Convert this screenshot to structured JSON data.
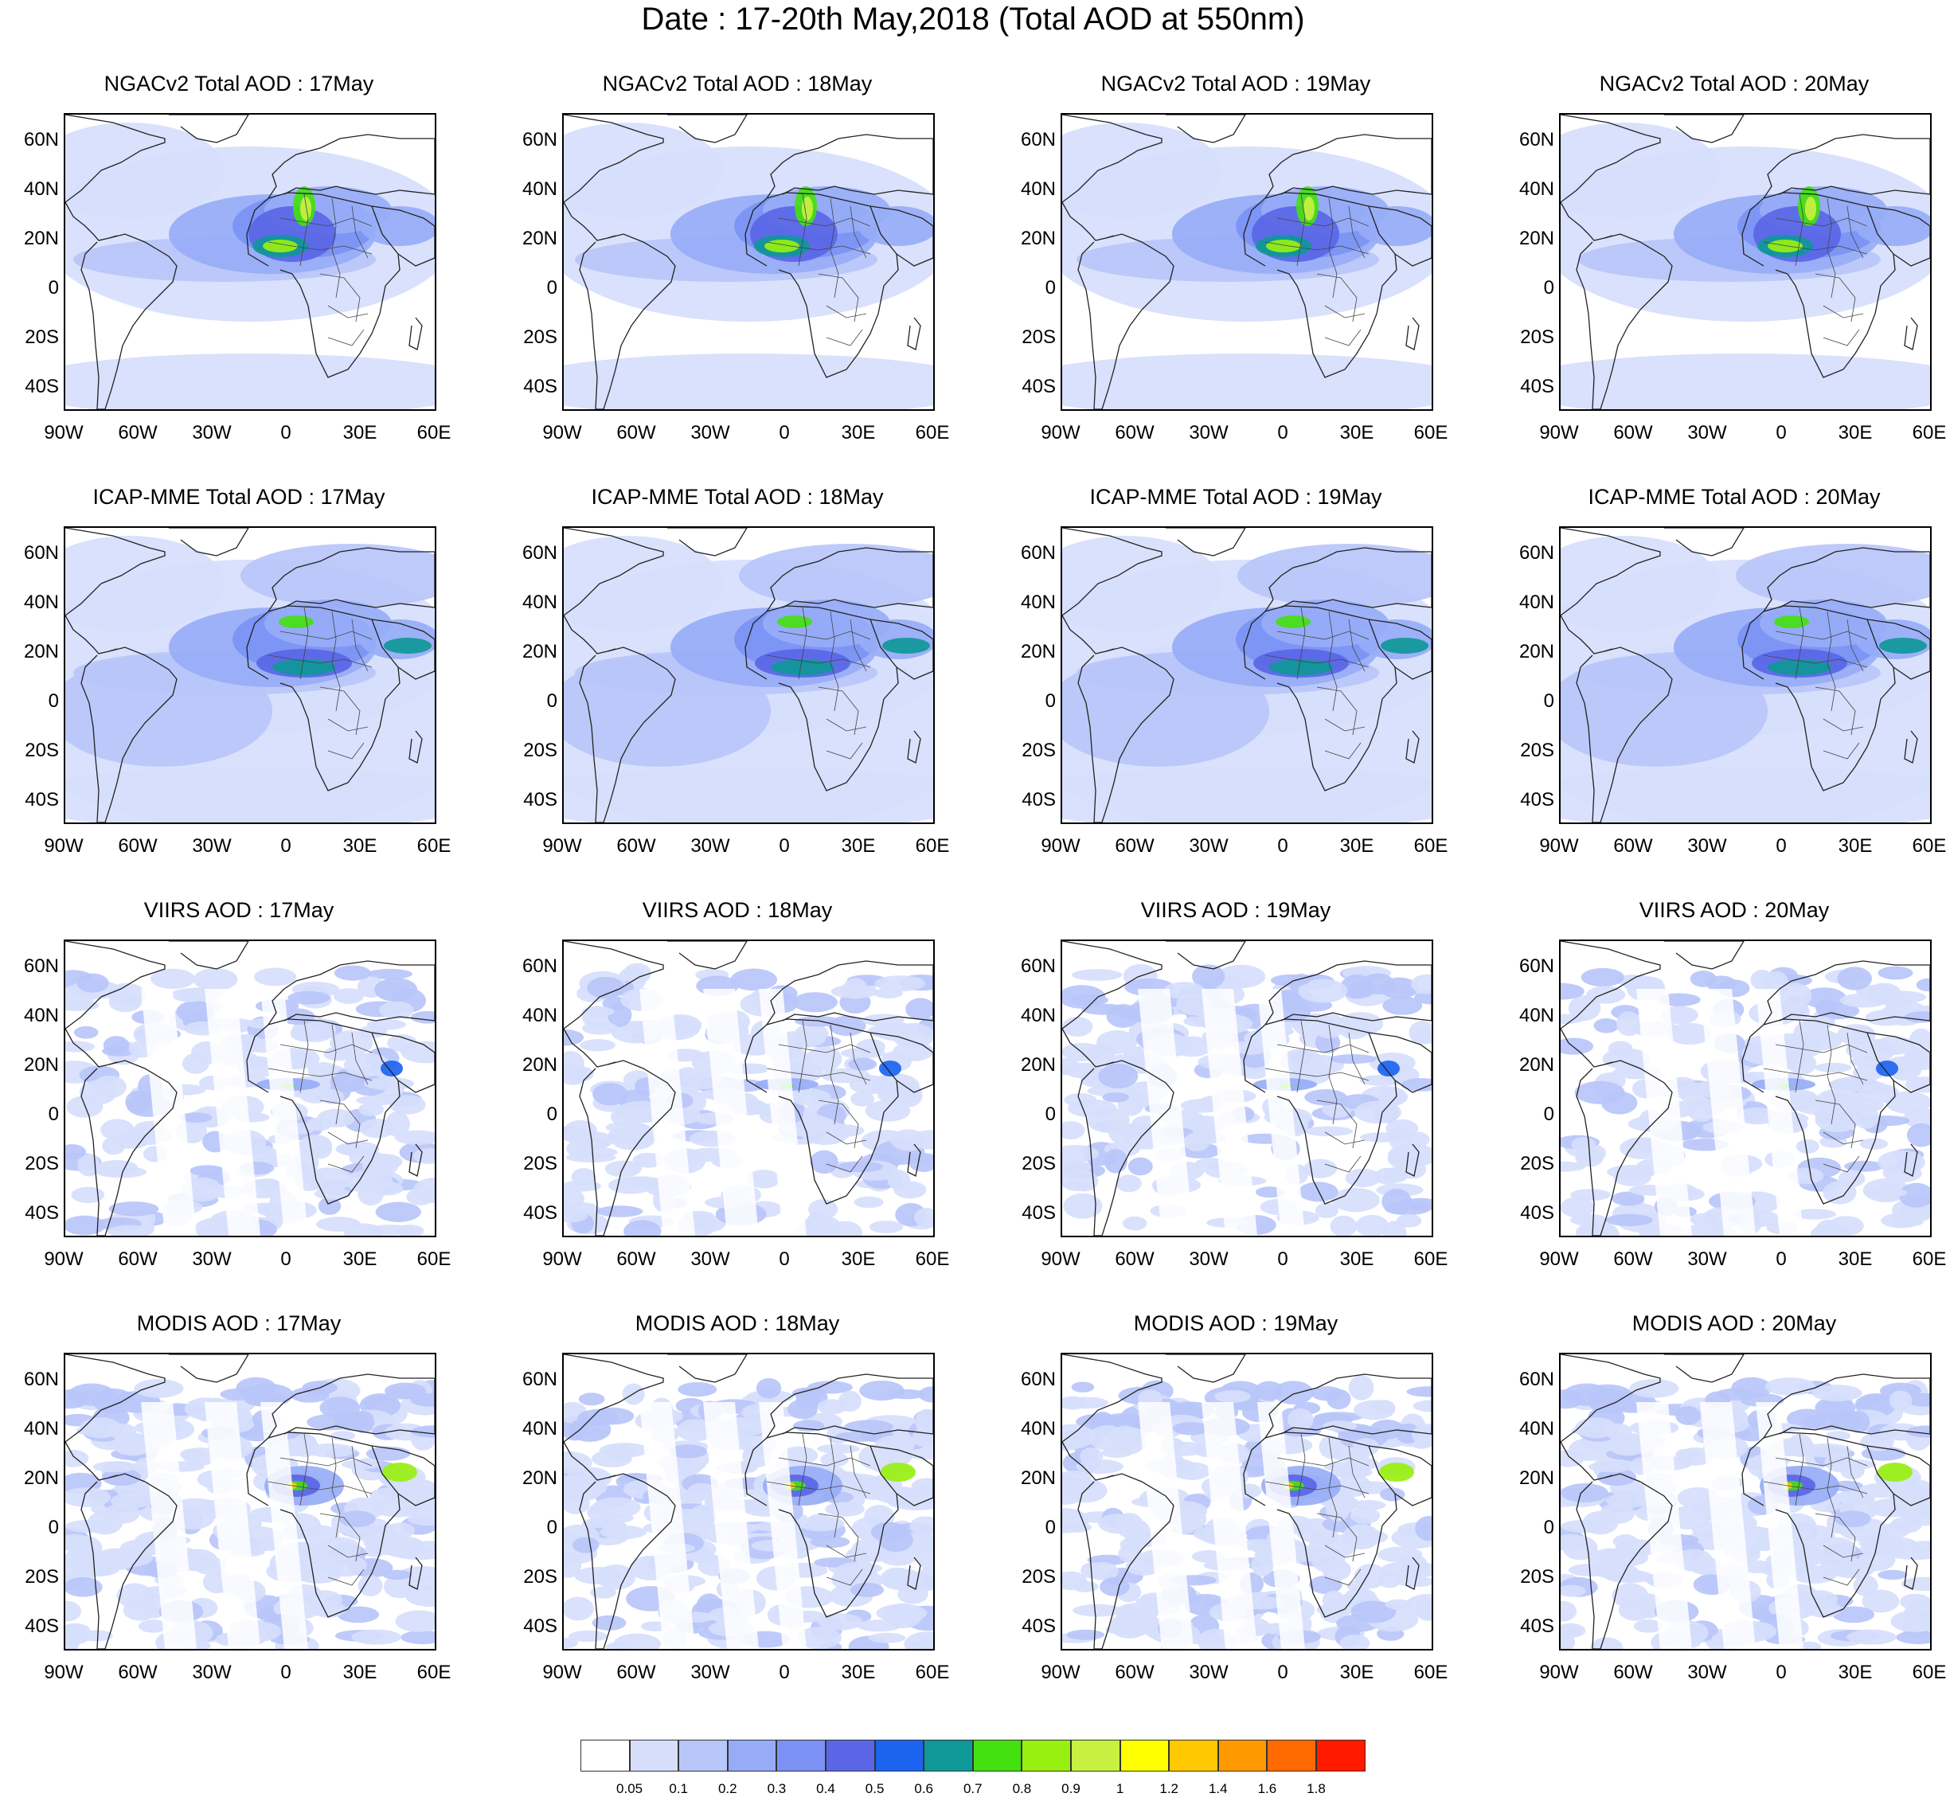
{
  "title": "Date : 17-20th May,2018 (Total AOD at 550nm)",
  "axis_labels": {
    "lat": [
      "60N",
      "40N",
      "20N",
      "0",
      "20S",
      "40S"
    ],
    "lon": [
      "90W",
      "60W",
      "30W",
      "0",
      "30E",
      "60E"
    ]
  },
  "panels": [
    {
      "title": "NGACv2 Total AOD : 17May",
      "source": "model_ngac"
    },
    {
      "title": "NGACv2 Total AOD : 18May",
      "source": "model_ngac"
    },
    {
      "title": "NGACv2 Total AOD : 19May",
      "source": "model_ngac"
    },
    {
      "title": "NGACv2 Total AOD : 20May",
      "source": "model_ngac"
    },
    {
      "title": "ICAP-MME Total AOD : 17May",
      "source": "model_icap"
    },
    {
      "title": "ICAP-MME Total AOD : 18May",
      "source": "model_icap"
    },
    {
      "title": "ICAP-MME Total AOD : 19May",
      "source": "model_icap"
    },
    {
      "title": "ICAP-MME Total AOD : 20May",
      "source": "model_icap"
    },
    {
      "title": "VIIRS AOD : 17May",
      "source": "satellite_viirs"
    },
    {
      "title": "VIIRS AOD : 18May",
      "source": "satellite_viirs"
    },
    {
      "title": "VIIRS AOD : 19May",
      "source": "satellite_viirs"
    },
    {
      "title": "VIIRS AOD : 20May",
      "source": "satellite_viirs"
    },
    {
      "title": "MODIS AOD : 17May",
      "source": "satellite_modis"
    },
    {
      "title": "MODIS AOD : 18May",
      "source": "satellite_modis"
    },
    {
      "title": "MODIS AOD : 19May",
      "source": "satellite_modis"
    },
    {
      "title": "MODIS AOD : 20May",
      "source": "satellite_modis"
    }
  ],
  "colorbar": {
    "ticks": [
      "0.05",
      "0.1",
      "0.2",
      "0.3",
      "0.4",
      "0.5",
      "0.6",
      "0.7",
      "0.8",
      "0.9",
      "1",
      "1.2",
      "1.4",
      "1.6",
      "1.8"
    ],
    "colors": [
      "#ffffff",
      "#d6defc",
      "#b8c6f8",
      "#97acf6",
      "#7b92f4",
      "#5a66e6",
      "#1c64f0",
      "#0f9898",
      "#44e010",
      "#98f010",
      "#c8f040",
      "#ffff00",
      "#ffc800",
      "#ff9900",
      "#ff6a00",
      "#ff1a00"
    ]
  }
}
